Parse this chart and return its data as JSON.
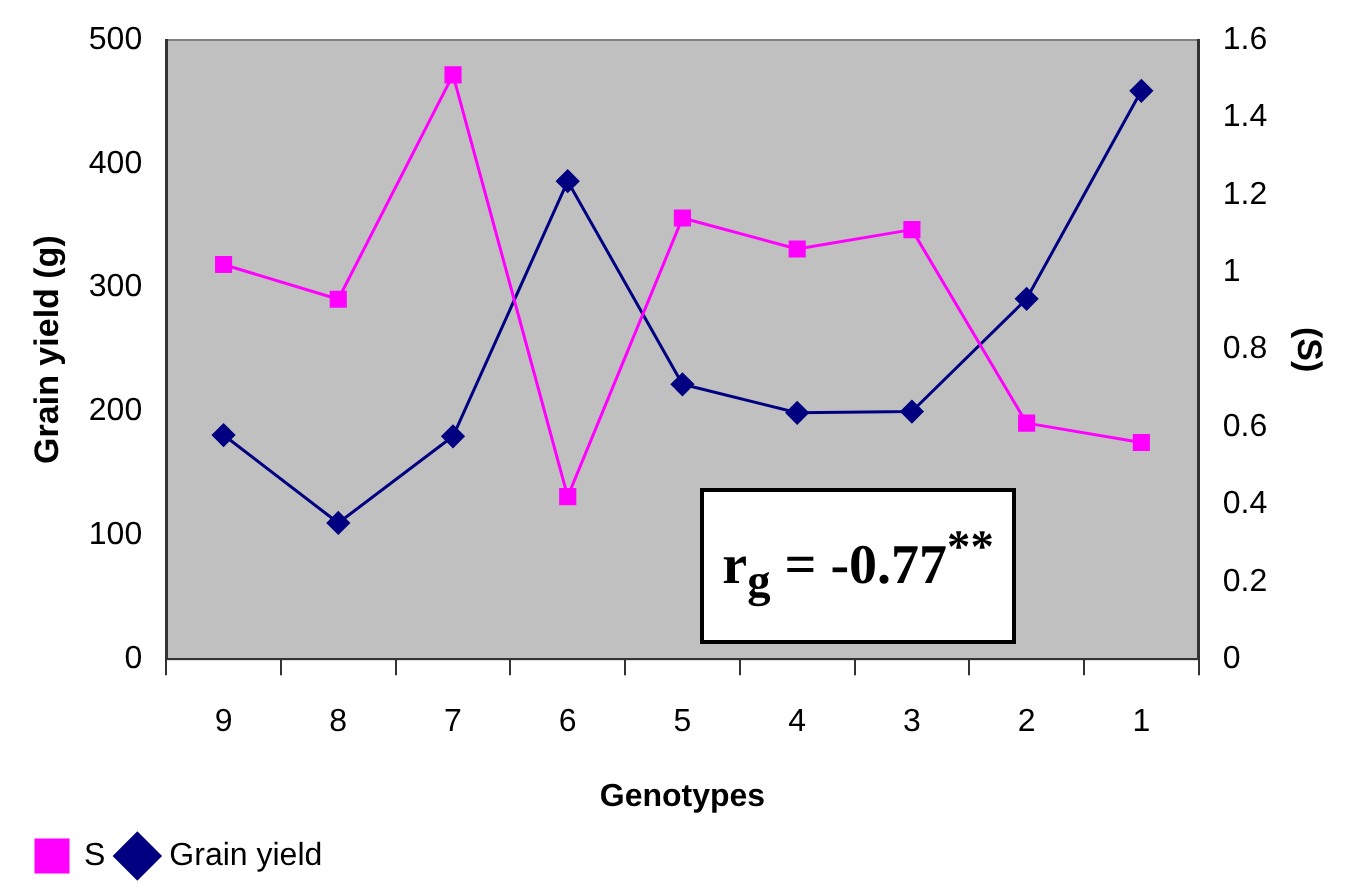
{
  "chart_data": {
    "type": "line",
    "xlabel": "Genotypes",
    "ylabel": "Grain yield (g)",
    "y2label": "(S)",
    "categories": [
      "9",
      "8",
      "7",
      "6",
      "5",
      "4",
      "3",
      "2",
      "1"
    ],
    "series": [
      {
        "name": "S",
        "color": "#ff00ff",
        "axis": "y2",
        "marker": "square",
        "values": [
          1.02,
          0.93,
          1.51,
          0.42,
          1.14,
          1.06,
          1.11,
          0.61,
          0.56
        ]
      },
      {
        "name": "Grain yield",
        "color": "#000080",
        "axis": "y",
        "marker": "diamond",
        "values": [
          181,
          110,
          180,
          386,
          222,
          199,
          200,
          291,
          459
        ]
      }
    ],
    "ylim": [
      0,
      500
    ],
    "yticks": [
      0,
      100,
      200,
      300,
      400,
      500
    ],
    "y2lim": [
      0,
      1.6
    ],
    "y2ticks": [
      0,
      0.2,
      0.4,
      0.6,
      0.8,
      1,
      1.2,
      1.4,
      1.6
    ],
    "grid": false,
    "legend": "bottom left",
    "line_style": "solid",
    "annotations": [
      "r$_{g}$ = -0.77$^{**}$"
    ]
  }
}
